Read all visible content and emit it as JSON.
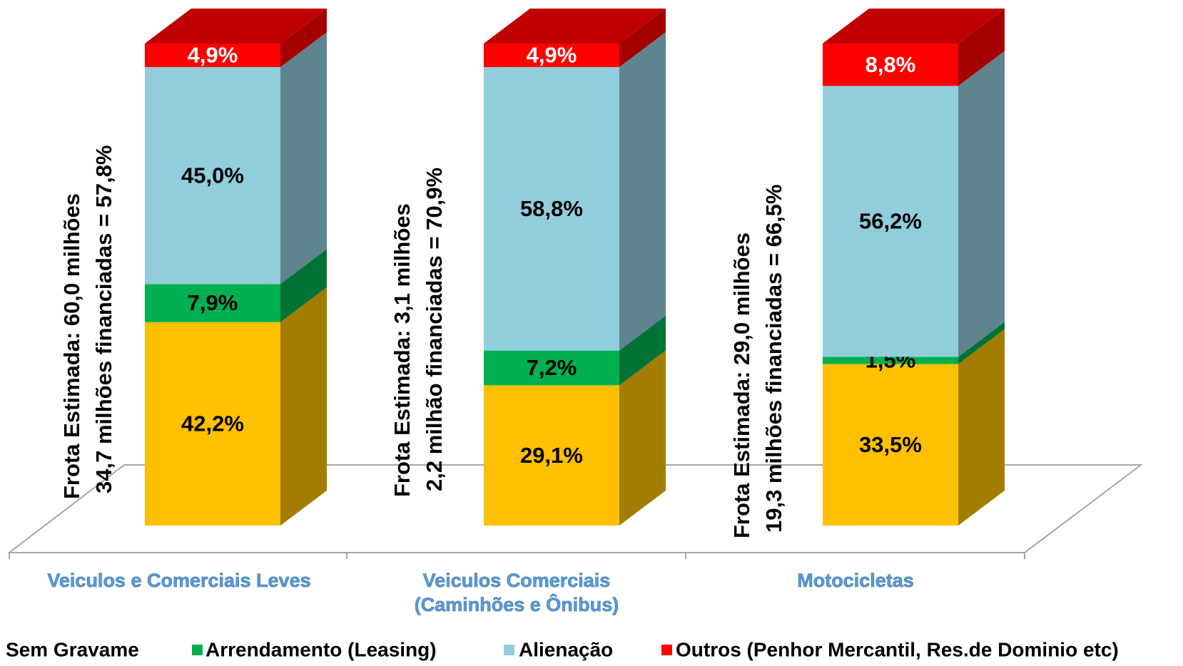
{
  "chart_data": {
    "type": "stacked-bar-3d",
    "categories": [
      "Veiculos e Comerciais Leves",
      "Veiculos Comerciais (Caminhões e Ônibus)",
      "Motocicletas"
    ],
    "series": [
      {
        "name": "Sem Gravame",
        "color": "#ffc000",
        "side_color": "#a27d00",
        "values": [
          42.2,
          29.1,
          33.5
        ],
        "value_labels": [
          "42,2%",
          "29,1%",
          "33,5%"
        ]
      },
      {
        "name": "Arrendamento (Leasing)",
        "color": "#00b050",
        "side_color": "#007236",
        "values": [
          7.9,
          7.2,
          1.5
        ],
        "value_labels": [
          "7,9%",
          "7,2%",
          "1,5%"
        ]
      },
      {
        "name": "Alienação",
        "color": "#92cddc",
        "side_color": "#5e858f",
        "values": [
          45.0,
          58.8,
          56.2
        ],
        "value_labels": [
          "45,0%",
          "58,8%",
          "56,2%"
        ]
      },
      {
        "name": "Outros (Penhor Mercantil, Res.de Dominio etc)",
        "color": "#ff0000",
        "side_color": "#a50000",
        "values": [
          4.9,
          4.9,
          8.8
        ],
        "value_labels": [
          "4,9%",
          "4,9%",
          "8,8%"
        ]
      }
    ],
    "annotations": [
      [
        "Frota Estimada: 60,0 milhões",
        "34,7 milhões  financiadas = 57,8%"
      ],
      [
        "Frota Estimada: 3,1 milhões",
        "2,2 milhão financiadas = 70,9%"
      ],
      [
        "Frota Estimada: 29,0 milhões",
        "19,3 milhões  financiadas = 66,5%"
      ]
    ],
    "legend": "bottom"
  }
}
